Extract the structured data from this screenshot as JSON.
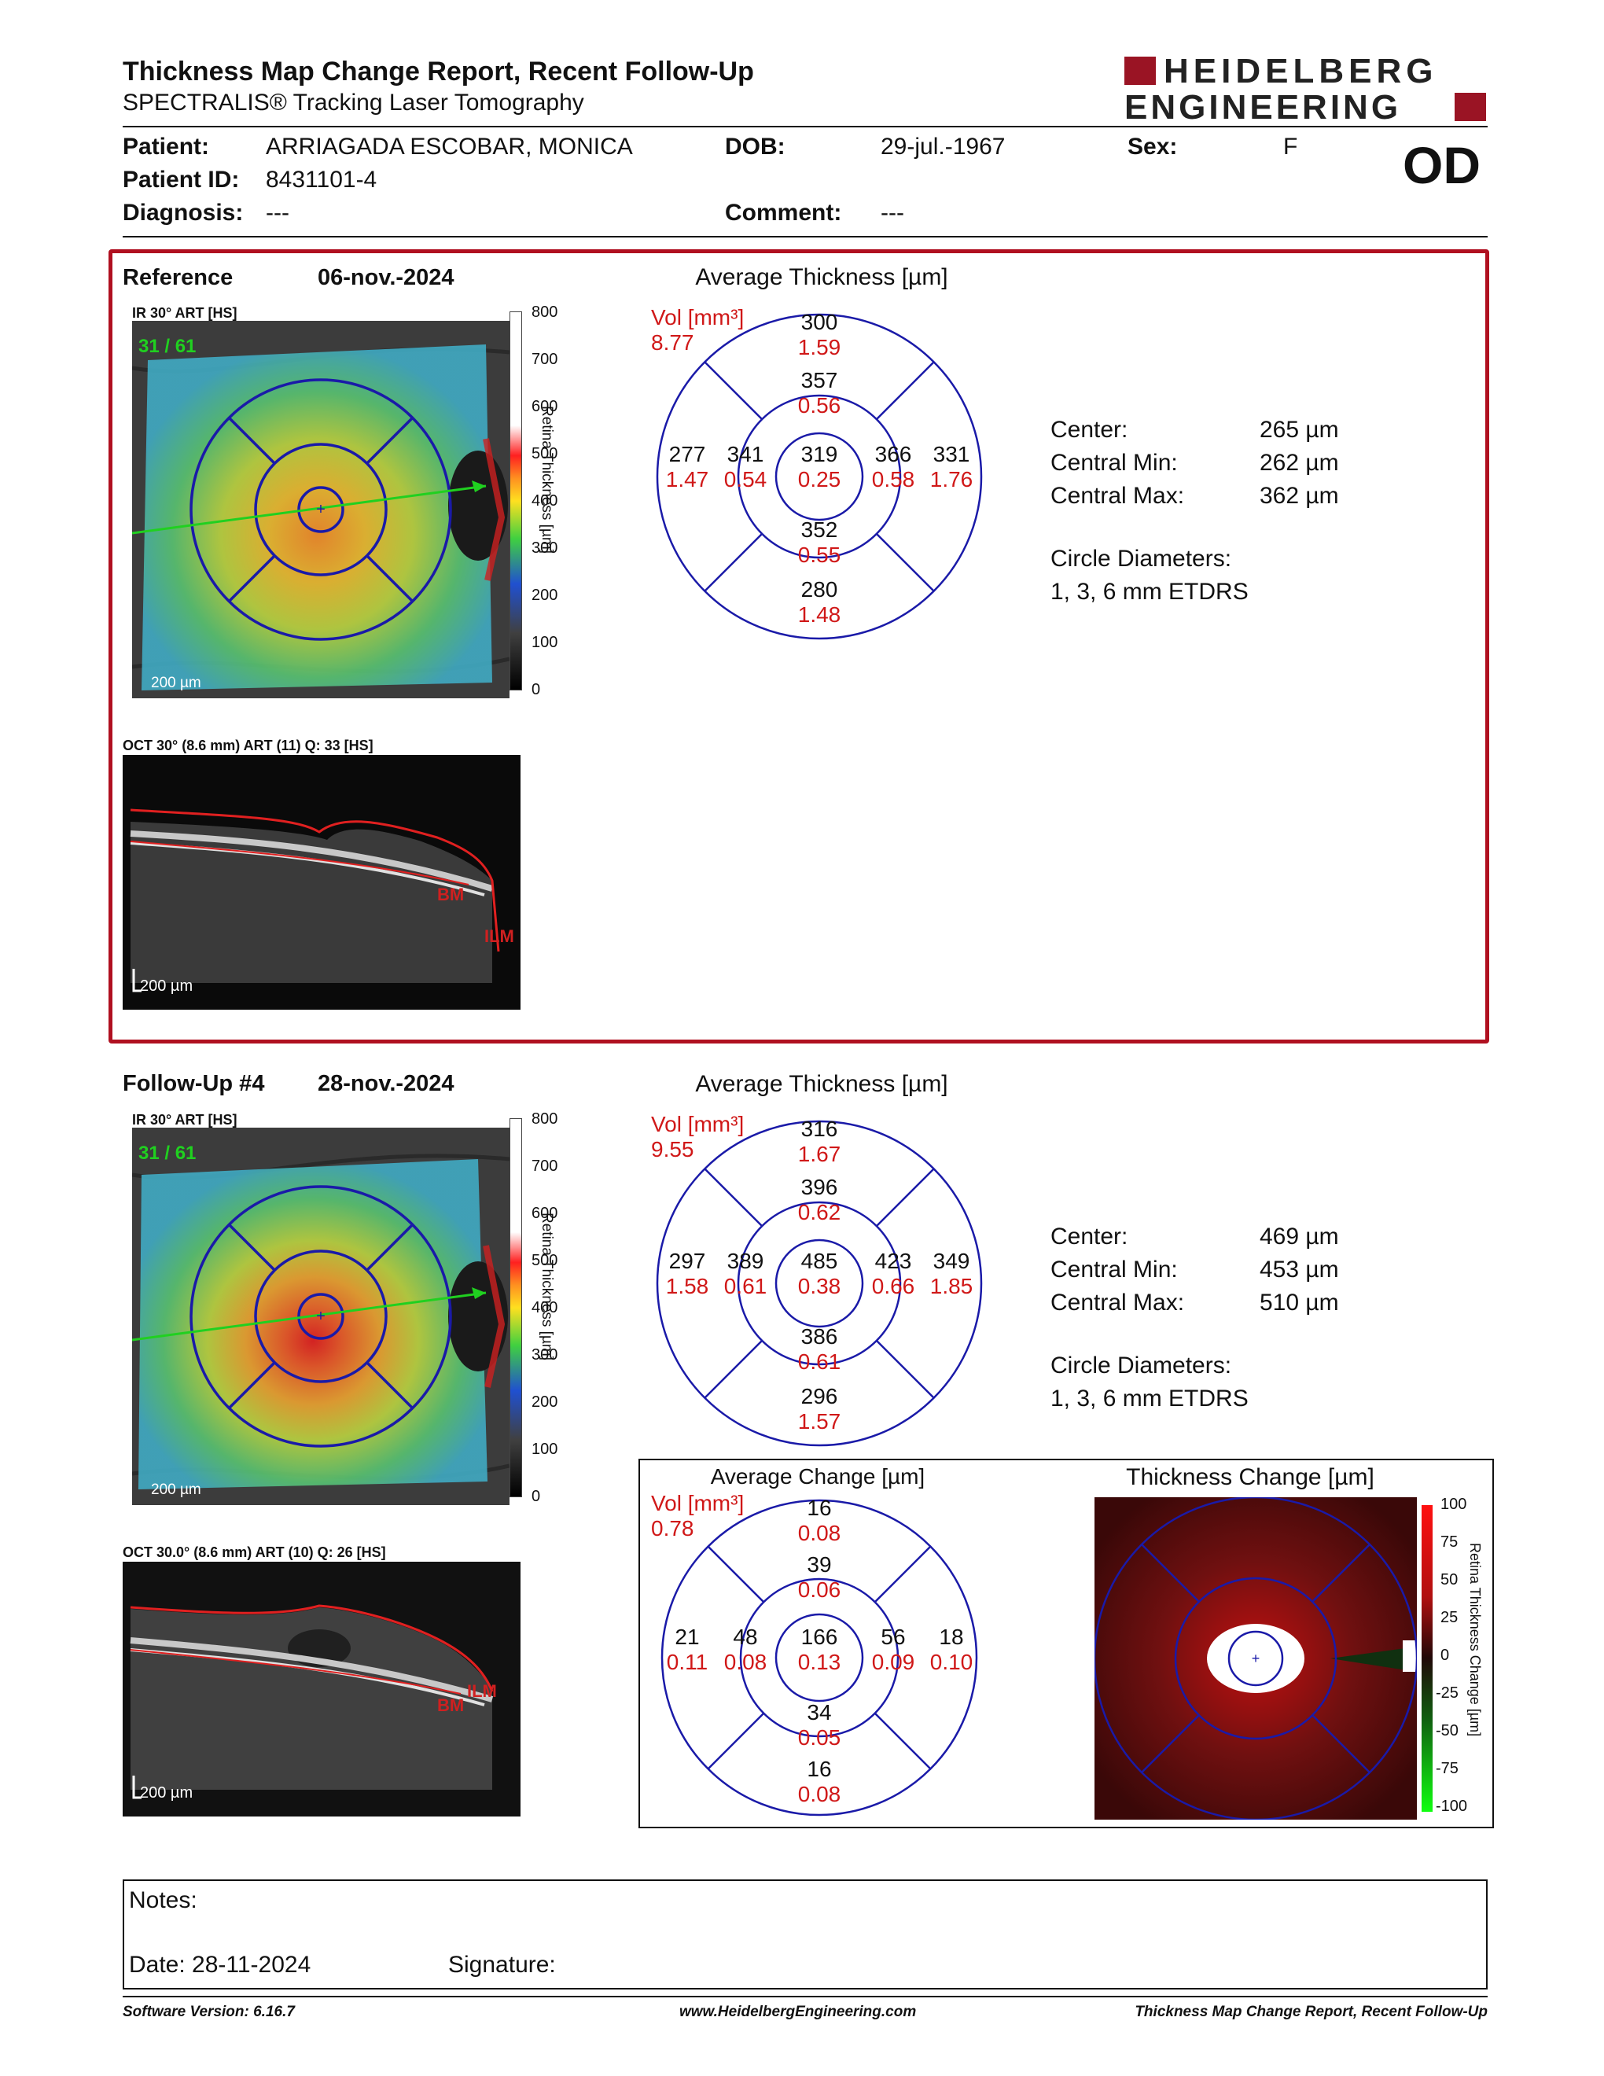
{
  "header": {
    "title": "Thickness Map Change Report, Recent Follow-Up",
    "subtitle": "SPECTRALIS® Tracking Laser Tomography",
    "logo_line1": "HEIDELBERG",
    "logo_line2": "ENGINEERING",
    "eye": "OD"
  },
  "patient": {
    "patient_label": "Patient:",
    "patient_value": "ARRIAGADA ESCOBAR, MONICA",
    "id_label": "Patient ID:",
    "id_value": "8431101-4",
    "diagnosis_label": "Diagnosis:",
    "diagnosis_value": "---",
    "dob_label": "DOB:",
    "dob_value": "29-jul.-1967",
    "comment_label": "Comment:",
    "comment_value": "---",
    "sex_label": "Sex:",
    "sex_value": "F"
  },
  "reference": {
    "label": "Reference",
    "date": "06-nov.-2024",
    "ir_caption": "IR 30° ART [HS]",
    "ir_frame": "31 / 61",
    "ir_scale": "200 µm",
    "oct_caption": "OCT 30° (8.6 mm) ART (11) Q: 33 [HS]",
    "oct_scale": "200 µm",
    "oct_labels": [
      "BM",
      "ILM"
    ],
    "colorbar_ticks": [
      "800",
      "700",
      "600",
      "500",
      "400",
      "300",
      "200",
      "100",
      "0"
    ],
    "colorbar_label": "Retina Thickness [µm]",
    "panel_title": "Average Thickness [µm]",
    "vol_label": "Vol [mm³]",
    "vol_value": "8.77",
    "grid": {
      "center": {
        "t": "319",
        "v": "0.25"
      },
      "inner_sup": {
        "t": "357",
        "v": "0.56"
      },
      "inner_inf": {
        "t": "352",
        "v": "0.55"
      },
      "inner_temp": {
        "t": "341",
        "v": "0.54"
      },
      "inner_nas": {
        "t": "366",
        "v": "0.58"
      },
      "outer_sup": {
        "t": "300",
        "v": "1.59"
      },
      "outer_inf": {
        "t": "280",
        "v": "1.48"
      },
      "outer_temp": {
        "t": "277",
        "v": "1.47"
      },
      "outer_nas": {
        "t": "331",
        "v": "1.76"
      }
    },
    "stats": {
      "center_label": "Center:",
      "center_value": "265 µm",
      "min_label": "Central Min:",
      "min_value": "262 µm",
      "max_label": "Central Max:",
      "max_value": "362 µm",
      "circle_label": "Circle Diameters:",
      "circle_value": "1, 3, 6 mm ETDRS"
    }
  },
  "followup": {
    "label": "Follow-Up #4",
    "date": "28-nov.-2024",
    "ir_caption": "IR 30° ART [HS]",
    "ir_frame": "31 / 61",
    "ir_scale": "200 µm",
    "oct_caption": "OCT 30.0° (8.6 mm) ART (10) Q: 26 [HS]",
    "oct_scale": "200 µm",
    "oct_labels": [
      "BM",
      "ILM"
    ],
    "colorbar_ticks": [
      "800",
      "700",
      "600",
      "500",
      "400",
      "300",
      "200",
      "100",
      "0"
    ],
    "colorbar_label": "Retina Thickness [µm]",
    "panel_title": "Average Thickness [µm]",
    "vol_label": "Vol [mm³]",
    "vol_value": "9.55",
    "grid": {
      "center": {
        "t": "485",
        "v": "0.38"
      },
      "inner_sup": {
        "t": "396",
        "v": "0.62"
      },
      "inner_inf": {
        "t": "386",
        "v": "0.61"
      },
      "inner_temp": {
        "t": "389",
        "v": "0.61"
      },
      "inner_nas": {
        "t": "423",
        "v": "0.66"
      },
      "outer_sup": {
        "t": "316",
        "v": "1.67"
      },
      "outer_inf": {
        "t": "296",
        "v": "1.57"
      },
      "outer_temp": {
        "t": "297",
        "v": "1.58"
      },
      "outer_nas": {
        "t": "349",
        "v": "1.85"
      }
    },
    "stats": {
      "center_label": "Center:",
      "center_value": "469 µm",
      "min_label": "Central Min:",
      "min_value": "453 µm",
      "max_label": "Central Max:",
      "max_value": "510 µm",
      "circle_label": "Circle Diameters:",
      "circle_value": "1, 3, 6 mm ETDRS"
    }
  },
  "change": {
    "panel_title": "Average Change [µm]",
    "vol_label": "Vol [mm³]",
    "vol_value": "0.78",
    "grid": {
      "center": {
        "t": "166",
        "v": "0.13"
      },
      "inner_sup": {
        "t": "39",
        "v": "0.06"
      },
      "inner_inf": {
        "t": "34",
        "v": "0.05"
      },
      "inner_temp": {
        "t": "48",
        "v": "0.08"
      },
      "inner_nas": {
        "t": "56",
        "v": "0.09"
      },
      "outer_sup": {
        "t": "16",
        "v": "0.08"
      },
      "outer_inf": {
        "t": "16",
        "v": "0.08"
      },
      "outer_temp": {
        "t": "21",
        "v": "0.11"
      },
      "outer_nas": {
        "t": "18",
        "v": "0.10"
      }
    },
    "map_title": "Thickness Change [µm]",
    "colorbar_ticks": [
      "100",
      "75",
      "50",
      "25",
      "0",
      "-25",
      "-50",
      "-75",
      "-100"
    ],
    "colorbar_label": "Retina Thickness Change [µm]"
  },
  "notes": {
    "notes_label": "Notes:",
    "date_label": "Date: 28-11-2024",
    "signature_label": "Signature:"
  },
  "footer": {
    "software": "Software Version: 6.16.7",
    "website": "www.HeidelbergEngineering.com",
    "report": "Thickness Map Change Report, Recent Follow-Up"
  },
  "colors": {
    "accent_red": "#b01020",
    "grid_blue": "#1a1aa8",
    "value_red": "#d01818"
  }
}
